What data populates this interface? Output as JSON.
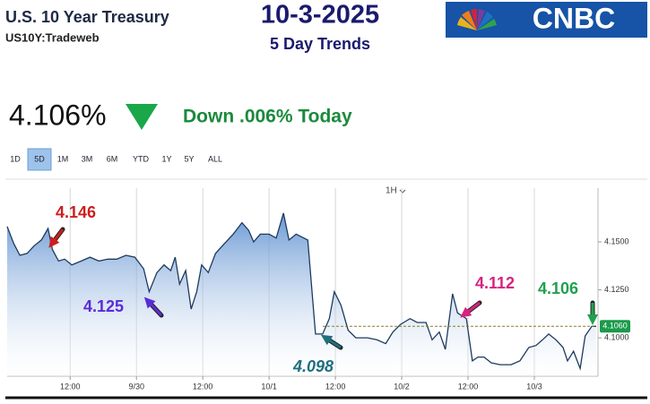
{
  "header": {
    "title": "U.S. 10 Year Treasury",
    "subtitle": "US10Y:Tradeweb",
    "date": "10-3-2025",
    "trend": "5 Day Trends",
    "logo": "CNBC"
  },
  "quote": {
    "price": "4.106%",
    "change": "Down .006% Today"
  },
  "ranges": [
    "1D",
    "5D",
    "1M",
    "3M",
    "6M",
    "YTD",
    "1Y",
    "5Y",
    "ALL"
  ],
  "selected_range": "5D",
  "interval": "1H",
  "chart_data": {
    "type": "area",
    "x": [
      0.6,
      1.8,
      2.9,
      4.2,
      5.5,
      6.8,
      8.0,
      8.8,
      9.9,
      11.0,
      12.3,
      14.0,
      15.6,
      17.2,
      18.8,
      20.4,
      22.1,
      23.7,
      25.3,
      26.3,
      27.7,
      29.0,
      30.2,
      31.0,
      31.8,
      32.9,
      33.9,
      34.9,
      35.8,
      37.0,
      38.3,
      39.9,
      41.5,
      43.1,
      44.3,
      45.2,
      46.4,
      48.0,
      49.3,
      50.6,
      51.6,
      52.9,
      55.0,
      56.4,
      57.7,
      58.9,
      59.8,
      61.0,
      62.3,
      63.7,
      65.8,
      67.5,
      69.1,
      70.4,
      71.8,
      73.5,
      74.8,
      76.4,
      77.5,
      78.8,
      79.9,
      81.2,
      82.1,
      83.7,
      84.8,
      85.8,
      86.9,
      88.2,
      89.8,
      91.8,
      93.4,
      95.0,
      96.3,
      97.5,
      98.6,
      99.9,
      101.2,
      102.0,
      103.1,
      104.3,
      105.2,
      106.4,
      107.2
    ],
    "values": [
      4.158,
      4.149,
      4.143,
      4.144,
      4.148,
      4.151,
      4.157,
      4.146,
      4.14,
      4.141,
      4.138,
      4.14,
      4.142,
      4.14,
      4.141,
      4.141,
      4.143,
      4.142,
      4.136,
      4.124,
      4.134,
      4.138,
      4.135,
      4.142,
      4.128,
      4.135,
      4.115,
      4.124,
      4.138,
      4.134,
      4.144,
      4.149,
      4.154,
      4.16,
      4.156,
      4.15,
      4.154,
      4.154,
      4.152,
      4.165,
      4.151,
      4.154,
      4.151,
      4.102,
      4.102,
      4.11,
      4.124,
      4.117,
      4.104,
      4.1,
      4.1,
      4.099,
      4.097,
      4.103,
      4.107,
      4.11,
      4.108,
      4.108,
      4.099,
      4.103,
      4.094,
      4.123,
      4.113,
      4.11,
      4.088,
      4.09,
      4.09,
      4.087,
      4.086,
      4.086,
      4.088,
      4.095,
      4.096,
      4.099,
      4.102,
      4.099,
      4.095,
      4.088,
      4.093,
      4.084,
      4.101,
      4.106,
      4.106
    ],
    "color": "#1e3a5f",
    "fill": "#4f86cc",
    "xlim": [
      0.6,
      107.2
    ],
    "ylim": [
      4.08,
      4.178
    ],
    "xticks": [
      {
        "value": 12,
        "label": "12:00"
      },
      {
        "value": 24,
        "label": "9/30"
      },
      {
        "value": 36,
        "label": "12:00"
      },
      {
        "value": 48,
        "label": "10/1"
      },
      {
        "value": 60,
        "label": "12:00"
      },
      {
        "value": 72,
        "label": "10/2"
      },
      {
        "value": 84,
        "label": "12:00"
      },
      {
        "value": 96,
        "label": "10/3"
      }
    ],
    "yticks": [
      {
        "value": 4.1,
        "label": "4.1000"
      },
      {
        "value": 4.125,
        "label": "4.1250"
      },
      {
        "value": 4.15,
        "label": "4.1500"
      }
    ],
    "xgrid": true,
    "last_price": {
      "value": 4.106,
      "label": "4.1060",
      "color": "#1a9a4a"
    },
    "annotations": [
      {
        "text": "4.146",
        "color": "#cc1f1f"
      },
      {
        "text": "4.125",
        "color": "#5a2bd6"
      },
      {
        "text": "4.098",
        "color": "#1f6f7f"
      },
      {
        "text": "4.112",
        "color": "#d6237f"
      },
      {
        "text": "4.106",
        "color": "#1fa050"
      }
    ]
  }
}
